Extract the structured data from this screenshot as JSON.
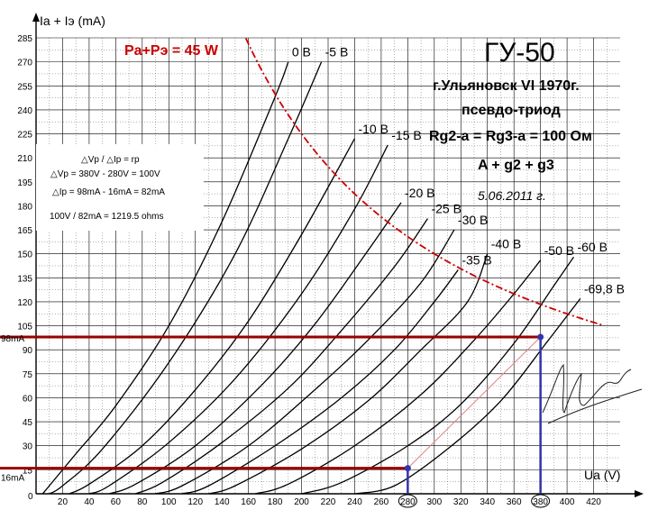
{
  "chart_data": {
    "type": "line",
    "ylabel": "Ia + Iэ (mA)",
    "xlabel": "Ua (V)",
    "xlim": [
      0,
      440
    ],
    "ylim": [
      0,
      285
    ],
    "x_ticks": [
      20,
      40,
      60,
      80,
      100,
      120,
      140,
      160,
      180,
      200,
      220,
      240,
      260,
      280,
      300,
      320,
      340,
      360,
      380,
      400,
      420
    ],
    "y_ticks": [
      15,
      30,
      45,
      60,
      75,
      90,
      105,
      120,
      135,
      150,
      165,
      180,
      195,
      210,
      225,
      240,
      255,
      270,
      285
    ],
    "origin_label": "0",
    "grid": true,
    "series": [
      {
        "name": "0 В",
        "values": [
          [
            5,
            0
          ],
          [
            10,
            5
          ],
          [
            30,
            25
          ],
          [
            60,
            55
          ],
          [
            100,
            105
          ],
          [
            140,
            170
          ],
          [
            180,
            248
          ],
          [
            190,
            270
          ]
        ]
      },
      {
        "name": "-5 В",
        "values": [
          [
            10,
            0
          ],
          [
            20,
            5
          ],
          [
            50,
            28
          ],
          [
            100,
            82
          ],
          [
            150,
            150
          ],
          [
            190,
            222
          ],
          [
            215,
            270
          ]
        ]
      },
      {
        "name": "-10 В",
        "values": [
          [
            25,
            0
          ],
          [
            40,
            6
          ],
          [
            80,
            30
          ],
          [
            120,
            65
          ],
          [
            160,
            108
          ],
          [
            200,
            162
          ],
          [
            240,
            222
          ]
        ]
      },
      {
        "name": "-15 В",
        "values": [
          [
            40,
            0
          ],
          [
            55,
            5
          ],
          [
            100,
            32
          ],
          [
            150,
            72
          ],
          [
            200,
            125
          ],
          [
            240,
            178
          ],
          [
            265,
            218
          ]
        ]
      },
      {
        "name": "-20 В",
        "values": [
          [
            55,
            0
          ],
          [
            75,
            6
          ],
          [
            120,
            30
          ],
          [
            170,
            68
          ],
          [
            210,
            106
          ],
          [
            250,
            152
          ],
          [
            275,
            182
          ]
        ]
      },
      {
        "name": "-25 В",
        "values": [
          [
            75,
            0
          ],
          [
            95,
            7
          ],
          [
            140,
            32
          ],
          [
            190,
            66
          ],
          [
            230,
            102
          ],
          [
            270,
            142
          ],
          [
            295,
            172
          ]
        ]
      },
      {
        "name": "-30 В",
        "values": [
          [
            90,
            0
          ],
          [
            110,
            5
          ],
          [
            160,
            30
          ],
          [
            210,
            65
          ],
          [
            250,
            96
          ],
          [
            290,
            132
          ],
          [
            315,
            165
          ]
        ]
      },
      {
        "name": "-35 В",
        "values": [
          [
            110,
            0
          ],
          [
            130,
            5
          ],
          [
            180,
            30
          ],
          [
            230,
            60
          ],
          [
            270,
            90
          ],
          [
            300,
            120
          ],
          [
            318,
            140
          ]
        ]
      },
      {
        "name": "-40 В",
        "values": [
          [
            130,
            0
          ],
          [
            150,
            5
          ],
          [
            200,
            28
          ],
          [
            250,
            58
          ],
          [
            290,
            90
          ],
          [
            325,
            120
          ],
          [
            340,
            150
          ]
        ]
      },
      {
        "name": "-50 В",
        "values": [
          [
            165,
            0
          ],
          [
            190,
            6
          ],
          [
            240,
            30
          ],
          [
            290,
            62
          ],
          [
            330,
            96
          ],
          [
            360,
            125
          ],
          [
            380,
            146
          ]
        ]
      },
      {
        "name": "-60 В",
        "values": [
          [
            200,
            0
          ],
          [
            230,
            7
          ],
          [
            280,
            30
          ],
          [
            320,
            56
          ],
          [
            360,
            94
          ],
          [
            390,
            130
          ],
          [
            405,
            148
          ]
        ]
      },
      {
        "name": "-69,8 В",
        "values": [
          [
            240,
            0
          ],
          [
            270,
            5
          ],
          [
            310,
            28
          ],
          [
            350,
            58
          ],
          [
            385,
            95
          ],
          [
            410,
            122
          ]
        ]
      }
    ],
    "power_limit": {
      "name": "Pa+Pэ = 45 W",
      "watts": 45,
      "x_range": [
        158,
        428
      ]
    },
    "load_line": {
      "x": [
        280,
        380
      ],
      "y": [
        16,
        98
      ]
    },
    "markers": [
      {
        "y": 98,
        "label": "98mA",
        "x": 380,
        "x_label": "380"
      },
      {
        "y": 16,
        "label": "16mA",
        "x": 280,
        "x_label": "280"
      }
    ],
    "annotations": {
      "tube": "ГУ-50",
      "line1": "г.Ульяновск VI 1970г.",
      "line2": "псевдо-триод",
      "line3": "Rg2-a = Rg3-a = 100 Ом",
      "line4": "A + g2 + g3",
      "date": "5.06.2011 г.",
      "calc1": "△Vp / △Ip = rp",
      "calc2": "△Vp = 380V - 280V = 100V",
      "calc3": "△Ip = 98mA - 16mA = 82mA",
      "calc4": "100V / 82mA = 1219.5 ohms"
    },
    "colors": {
      "curves": "#000000",
      "grid": "#000000",
      "power_limit": "#cc0000",
      "marker_h": "#990000",
      "marker_v": "#3333aa",
      "load_line": "#e08080"
    }
  }
}
